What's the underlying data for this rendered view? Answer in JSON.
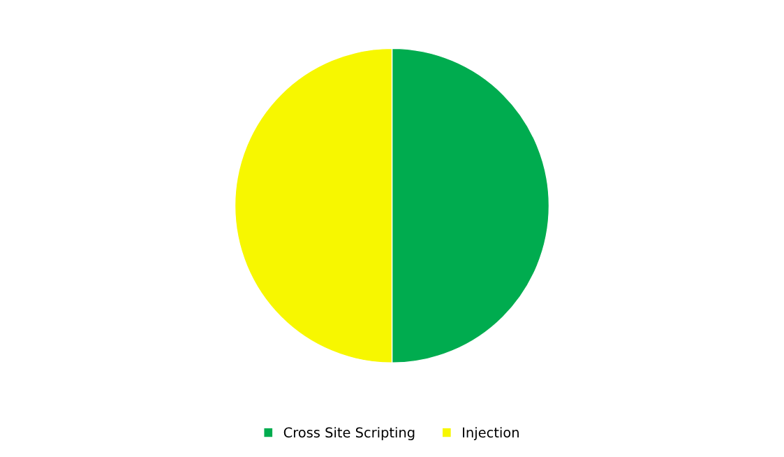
{
  "chart_data": {
    "type": "pie",
    "categories": [
      "Cross Site Scripting",
      "Injection"
    ],
    "values": [
      50,
      50
    ],
    "colors": [
      "#00ac4f",
      "#f7f700"
    ],
    "legend": "bottom"
  }
}
